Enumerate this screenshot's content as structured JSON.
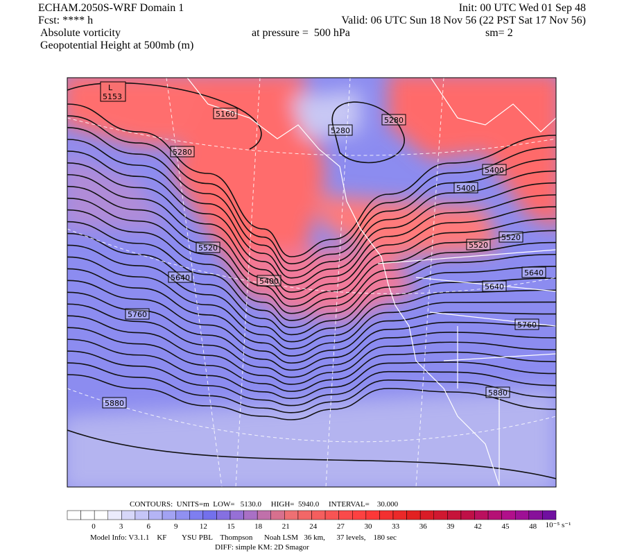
{
  "header": {
    "title": "ECHAM.2050S-WRF Domain 1",
    "forecast": "Fcst: **** h",
    "field_1": "Absolute vorticity",
    "field_2": "Geopotential Height at 500mb (m)",
    "init": "Init: 00 UTC Wed 01 Sep 48",
    "valid": "Valid: 06 UTC Sun 18 Nov 56 (22 PST Sat 17 Nov 56)",
    "pressure": "at pressure =  500 hPa",
    "smoothing": "sm= 2"
  },
  "map": {
    "low_marker": "L",
    "low_value": "5153",
    "contour_labels": [
      "5160",
      "5280",
      "5280",
      "5280",
      "5400",
      "5400",
      "5400",
      "5520",
      "5520",
      "5520",
      "5640",
      "5640",
      "5640",
      "5760",
      "5760",
      "5880",
      "5880"
    ]
  },
  "contours_info": "CONTOURS:  UNITS=m  LOW=   5130.0     HIGH=  5940.0     INTERVAL=    30.000",
  "colorbar": {
    "labels": [
      0,
      3,
      6,
      9,
      12,
      15,
      18,
      21,
      24,
      27,
      30,
      33,
      36,
      39,
      42,
      45,
      48
    ],
    "units": "10⁻⁵ s⁻¹"
  },
  "footer": {
    "model_info": "Model Info: V3.1.1    KF        YSU PBL    Thompson      Noah LSM   36 km,      37 levels,    180 sec",
    "diff": "DIFF: simple KM: 2D Smagor"
  }
}
